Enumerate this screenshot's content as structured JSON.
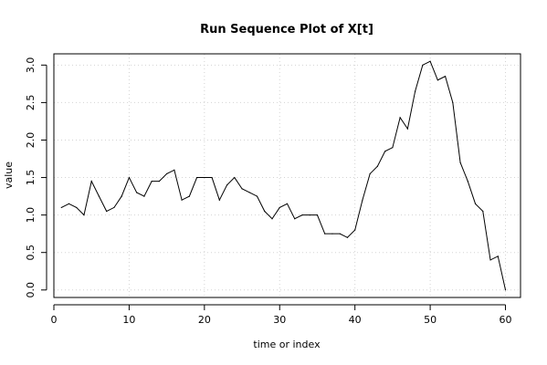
{
  "chart_data": {
    "type": "line",
    "title": "Run Sequence Plot of X[t]",
    "xlabel": "time or index",
    "ylabel": "value",
    "xlim": [
      0,
      62
    ],
    "ylim": [
      -0.1,
      3.15
    ],
    "xticks": [
      0,
      10,
      20,
      30,
      40,
      50,
      60
    ],
    "yticks": [
      0.0,
      0.5,
      1.0,
      1.5,
      2.0,
      2.5,
      3.0
    ],
    "ytick_labels": [
      "0.0",
      "0.5",
      "1.0",
      "1.5",
      "2.0",
      "2.5",
      "3.0"
    ],
    "grid": true,
    "grid_style": "dotted",
    "line_color": "#000000",
    "x": [
      1,
      2,
      3,
      4,
      5,
      6,
      7,
      8,
      9,
      10,
      11,
      12,
      13,
      14,
      15,
      16,
      17,
      18,
      19,
      20,
      21,
      22,
      23,
      24,
      25,
      26,
      27,
      28,
      29,
      30,
      31,
      32,
      33,
      34,
      35,
      36,
      37,
      38,
      39,
      40,
      41,
      42,
      43,
      44,
      45,
      46,
      47,
      48,
      49,
      50,
      51,
      52,
      53,
      54,
      55,
      56,
      57,
      58,
      59,
      60
    ],
    "y": [
      1.1,
      1.15,
      1.1,
      1.0,
      1.45,
      1.25,
      1.05,
      1.1,
      1.25,
      1.5,
      1.3,
      1.25,
      1.45,
      1.45,
      1.55,
      1.6,
      1.2,
      1.25,
      1.5,
      1.5,
      1.5,
      1.2,
      1.4,
      1.5,
      1.35,
      1.3,
      1.25,
      1.05,
      0.95,
      1.1,
      1.15,
      0.95,
      1.0,
      1.0,
      1.0,
      0.75,
      0.75,
      0.75,
      0.7,
      0.8,
      1.2,
      1.55,
      1.65,
      1.85,
      1.9,
      2.3,
      2.15,
      2.65,
      3.0,
      3.05,
      2.8,
      2.85,
      2.5,
      1.7,
      1.45,
      1.15,
      1.05,
      0.4,
      0.45,
      0.0
    ]
  }
}
